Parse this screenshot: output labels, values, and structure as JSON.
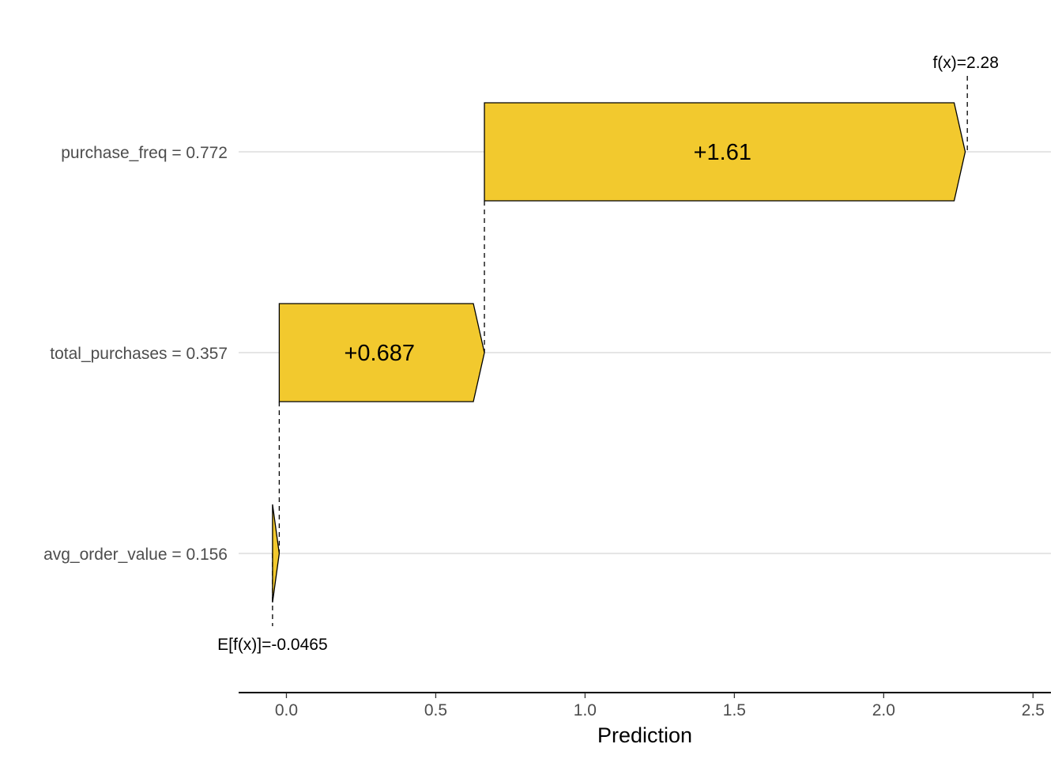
{
  "chart_data": {
    "type": "bar",
    "subtype": "waterfall",
    "base_value": -0.0465,
    "prediction": 2.28,
    "base_label": "E[f(x)]=-0.0465",
    "prediction_label": "f(x)=2.28",
    "features": [
      {
        "label": "purchase_freq = 0.772",
        "contribution": 1.61,
        "contribution_label": "+1.61"
      },
      {
        "label": "total_purchases = 0.357",
        "contribution": 0.687,
        "contribution_label": "+0.687"
      },
      {
        "label": "avg_order_value = 0.156",
        "contribution": 0.0225,
        "contribution_label": ""
      }
    ],
    "xlabel": "Prediction",
    "xticks": [
      0.0,
      0.5,
      1.0,
      1.5,
      2.0,
      2.5
    ],
    "xtick_labels": [
      "0.0",
      "0.5",
      "1.0",
      "1.5",
      "2.0",
      "2.5"
    ],
    "xlim": [
      -0.16,
      2.56
    ],
    "grid": "horizontal",
    "colors": {
      "positive": "#f2c92e",
      "stroke": "#000000",
      "grid": "#e5e5e5"
    }
  }
}
